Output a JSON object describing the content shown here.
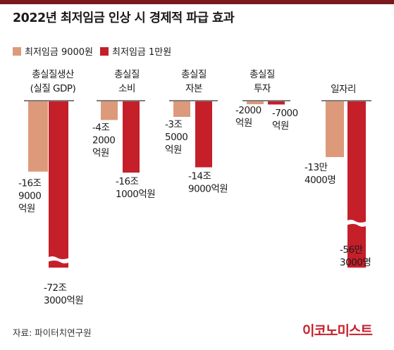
{
  "colors": {
    "light": "#dc9a7a",
    "dark": "#c51f2a",
    "topbar": "#7a1a1f",
    "logo": "#c6202b"
  },
  "title": "2022년 최저임금 인상 시 경제적 파급 효과",
  "source": "자료: 파이터치연구원",
  "logo": "이코노미스트",
  "chart_data": {
    "type": "bar",
    "title": "2022년 최저임금 인상 시 경제적 파급 효과",
    "series": [
      {
        "name": "최저임금 9000원",
        "color": "#dc9a7a",
        "values": [
          -16.9,
          -4.2,
          -3.5,
          -0.2,
          -13.4
        ]
      },
      {
        "name": "최저임금 1만원",
        "color": "#c51f2a",
        "values": [
          -72.3,
          -16.1,
          -14.9,
          -0.7,
          -56.3
        ]
      }
    ],
    "categories": [
      {
        "label": [
          "총실질생산",
          "(실질 GDP)"
        ]
      },
      {
        "label": [
          "총실질",
          "소비"
        ]
      },
      {
        "label": [
          "총실질",
          "자본"
        ]
      },
      {
        "label": [
          "총실질",
          "투자"
        ]
      },
      {
        "label": [
          "일자리"
        ]
      }
    ],
    "value_labels": [
      [
        [
          "-16조",
          "9000",
          "억원"
        ],
        [
          "-72조",
          "3000억원"
        ]
      ],
      [
        [
          "-4조",
          "2000",
          "억원"
        ],
        [
          "-16조",
          "1000억원"
        ]
      ],
      [
        [
          "-3조",
          "5000",
          "억원"
        ],
        [
          "-14조",
          "9000억원"
        ]
      ],
      [
        [
          "-2000",
          "억원"
        ],
        [
          "-7000",
          "억원"
        ]
      ],
      [
        [
          "-13만",
          "4000명"
        ],
        [
          "-56만",
          "3000명"
        ]
      ]
    ],
    "units": [
      "조원",
      "조원",
      "조원",
      "조원",
      "만명"
    ],
    "scale_breaks": [
      0,
      4
    ]
  }
}
